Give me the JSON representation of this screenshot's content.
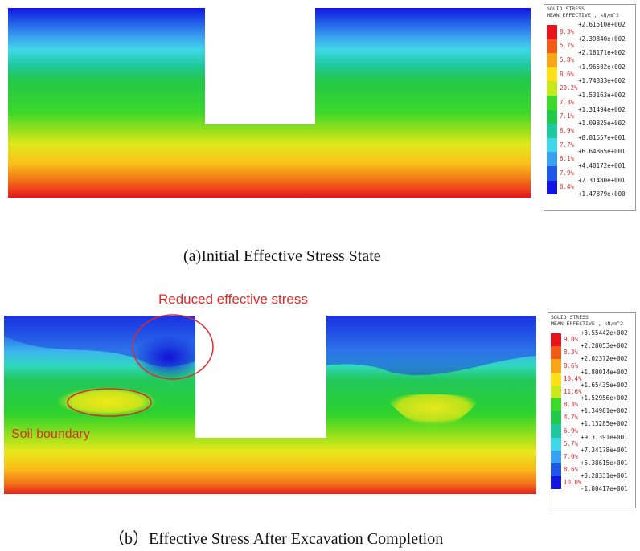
{
  "panel_a": {
    "legend": {
      "title_line1": "SOLID STRESS",
      "title_line2": "MEAN EFFECTIVE , kN/m^2",
      "values": [
        "+2.61510e+002",
        "+2.39840e+002",
        "+2.18171e+002",
        "+1.96502e+002",
        "+1.74833e+002",
        "+1.53163e+002",
        "+1.31494e+002",
        "+1.09825e+002",
        "+8.81557e+001",
        "+6.64865e+001",
        "+4.48172e+001",
        "+2.31480e+001",
        "+1.47879e+000"
      ],
      "percents": [
        "8.3%",
        "5.7%",
        "5.8%",
        "8.6%",
        "20.2%",
        "7.3%",
        "7.1%",
        "6.9%",
        "7.7%",
        "6.1%",
        "7.9%",
        "8.4%"
      ]
    },
    "caption": "(a)Initial Effective Stress State"
  },
  "panel_b": {
    "legend": {
      "title_line1": "SOLID STRESS",
      "title_line2": "MEAN EFFECTIVE , kN/m^2",
      "values": [
        "+3.55442e+002",
        "+2.28053e+002",
        "+2.02372e+002",
        "+1.80014e+002",
        "+1.65435e+002",
        "+1.52956e+002",
        "+1.34981e+002",
        "+1.13285e+002",
        "+9.31391e+001",
        "+7.34178e+001",
        "+5.38615e+001",
        "+3.28331e+001",
        "-1.80417e+001"
      ],
      "percents": [
        "9.0%",
        "8.3%",
        "8.6%",
        "10.4%",
        "11.6%",
        "8.3%",
        "4.7%",
        "6.9%",
        "5.7%",
        "7.0%",
        "8.6%",
        "10.0%"
      ]
    },
    "annotations": {
      "reduced": "Reduced effective stress",
      "soil": "Soil boundary"
    },
    "caption": "（b）Effective Stress After Excavation Completion"
  },
  "colors": {
    "scale": [
      "#e8141c",
      "#f25a18",
      "#f9a51a",
      "#fde01c",
      "#c6e81c",
      "#3cd82a",
      "#22c84a",
      "#20c8a0",
      "#40d8e8",
      "#3aa0f0",
      "#2058e8",
      "#1414e0"
    ],
    "annotation": "#e02a2a"
  }
}
